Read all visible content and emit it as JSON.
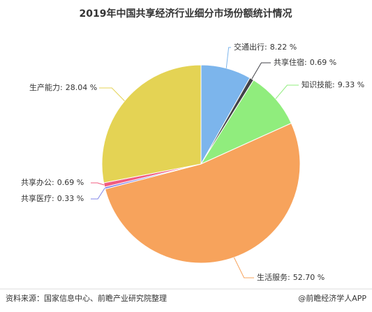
{
  "chart_data": {
    "type": "pie",
    "title": "2019年中国共享经济行业细分市场份额统计情况",
    "categories": [
      "交通出行:",
      "共享住宿:",
      "知识技能:",
      "生活服务:",
      "共享医疗:",
      "共享办公:",
      "生产能力:"
    ],
    "values": [
      8.22,
      0.69,
      9.33,
      52.7,
      0.33,
      0.69,
      28.04
    ],
    "value_labels": [
      "8.22 %",
      "0.69 %",
      "9.33 %",
      "52.70 %",
      "0.33 %",
      "0.69 %",
      "28.04 %"
    ],
    "colors": [
      "#7cb5ec",
      "#434348",
      "#90ed7d",
      "#f7a35c",
      "#8085e9",
      "#f15c80",
      "#e4d354"
    ]
  },
  "footer": {
    "source": "资料来源：国家信息中心、前瞻产业研究院整理",
    "credit": "@前瞻经济学人APP"
  }
}
